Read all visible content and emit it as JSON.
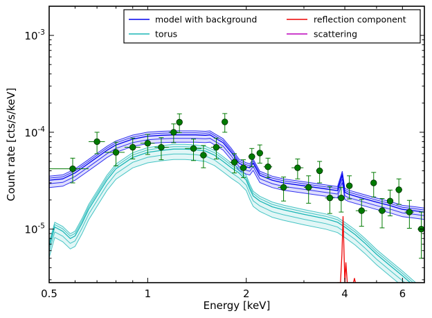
{
  "chart_data": {
    "type": "line",
    "xlabel": "Energy [keV]",
    "ylabel": "Count rate [cts/s/keV]",
    "xscale": "log",
    "yscale": "log",
    "xlim": [
      0.5,
      7.0
    ],
    "ylim": [
      2.8e-06,
      0.002
    ],
    "x_ticks": [
      {
        "value": 0.5,
        "label": "0.5"
      },
      {
        "value": 1,
        "label": "1"
      },
      {
        "value": 2,
        "label": "2"
      },
      {
        "value": 4,
        "label": "4"
      },
      {
        "value": 6,
        "label": "6"
      }
    ],
    "y_ticks": [
      {
        "value": 1e-05,
        "base": "10",
        "exp": "-5"
      },
      {
        "value": 0.0001,
        "base": "10",
        "exp": "-4"
      },
      {
        "value": 0.001,
        "base": "10",
        "exp": "-3"
      }
    ],
    "legend_position": "top-right",
    "grid": false,
    "legend": [
      {
        "label": "model with background",
        "color": "#0000ee"
      },
      {
        "label": "torus",
        "color": "#1ab6b6"
      },
      {
        "label": "reflection component",
        "color": "#ee0000"
      },
      {
        "label": "scattering",
        "color": "#bb00bb"
      }
    ],
    "series": [
      {
        "name": "model with background",
        "color": "#0000ee",
        "band": true,
        "x": [
          0.5,
          0.55,
          0.6,
          0.65,
          0.7,
          0.75,
          0.8,
          0.9,
          1.0,
          1.1,
          1.2,
          1.3,
          1.4,
          1.5,
          1.55,
          1.6,
          1.7,
          1.8,
          1.9,
          2.0,
          2.05,
          2.1,
          2.2,
          2.4,
          2.6,
          3.0,
          3.5,
          3.8,
          3.93,
          4.0,
          4.1,
          4.5,
          5.0,
          5.5,
          6.0,
          6.5,
          7.0
        ],
        "y": [
          3.2e-05,
          3.3e-05,
          3.8e-05,
          4.6e-05,
          5.5e-05,
          6.5e-05,
          7.4e-05,
          8.5e-05,
          9.1e-05,
          9.3e-05,
          9.4e-05,
          9.4e-05,
          9.4e-05,
          9.3e-05,
          9.4e-05,
          8.8e-05,
          7.8e-05,
          6.2e-05,
          4.8e-05,
          4.4e-05,
          4.3e-05,
          4.8e-05,
          3.6e-05,
          3.2e-05,
          3e-05,
          2.8e-05,
          2.6e-05,
          2.5e-05,
          3.6e-05,
          2.4e-05,
          2.3e-05,
          2.1e-05,
          1.9e-05,
          1.75e-05,
          1.6e-05,
          1.55e-05,
          1.5e-05
        ],
        "low_factor": 0.84,
        "high_factor": 1.1
      },
      {
        "name": "torus",
        "color": "#1ab6b6",
        "band": true,
        "x": [
          0.5,
          0.52,
          0.55,
          0.58,
          0.6,
          0.63,
          0.66,
          0.7,
          0.75,
          0.8,
          0.9,
          1.0,
          1.1,
          1.2,
          1.3,
          1.4,
          1.5,
          1.6,
          1.7,
          1.8,
          1.9,
          2.0,
          2.05,
          2.1,
          2.2,
          2.4,
          2.6,
          3.0,
          3.5,
          3.8,
          4.0,
          4.3,
          4.6,
          5.0,
          5.5,
          6.0,
          6.5,
          7.0
        ],
        "y": [
          6.5e-06,
          1.05e-05,
          9.5e-06,
          8e-06,
          8.5e-06,
          1.15e-05,
          1.6e-05,
          2.2e-05,
          3.2e-05,
          4.2e-05,
          5.5e-05,
          6.2e-05,
          6.5e-05,
          6.7e-05,
          6.7e-05,
          6.6e-05,
          6.4e-05,
          5.8e-05,
          5e-05,
          4.3e-05,
          3.8e-05,
          3.2e-05,
          2.6e-05,
          2.2e-05,
          1.95e-05,
          1.7e-05,
          1.58e-05,
          1.42e-05,
          1.28e-05,
          1.18e-05,
          1.05e-05,
          8.8e-06,
          7.2e-06,
          5.5e-06,
          4.2e-06,
          3.3e-06,
          2.6e-06,
          2.1e-06
        ],
        "low_factor": 0.78,
        "high_factor": 1.12
      },
      {
        "name": "reflection component",
        "color": "#ee0000",
        "band": false,
        "x": [
          3.8,
          3.88,
          3.92,
          3.95,
          3.97,
          4.0,
          4.03,
          4.07,
          4.12,
          4.2,
          4.25,
          4.28,
          4.31,
          4.34,
          4.45
        ],
        "y": [
          2.8e-06,
          2.8e-06,
          5.5e-06,
          1.35e-05,
          7.5e-06,
          2.8e-06,
          4.5e-06,
          2.8e-06,
          2.8e-06,
          2.8e-06,
          2.8e-06,
          3.1e-06,
          2.8e-06,
          2.8e-06,
          2.8e-06
        ]
      },
      {
        "name": "scattering",
        "color": "#bb00bb",
        "band": false,
        "x": [],
        "y": []
      }
    ],
    "data_points": {
      "color": "#007a00",
      "points": [
        {
          "x": 0.59,
          "y": 4.2e-05,
          "xerr": [
            0.09,
            0.07
          ],
          "yerr": [
            1.2e-05,
            1.2e-05
          ]
        },
        {
          "x": 0.7,
          "y": 8e-05,
          "xerr": [
            0.04,
            0.04
          ],
          "yerr": [
            2e-05,
            2e-05
          ]
        },
        {
          "x": 0.8,
          "y": 6.2e-05,
          "xerr": [
            0.06,
            0.05
          ],
          "yerr": [
            1.7e-05,
            1.7e-05
          ]
        },
        {
          "x": 0.9,
          "y": 7e-05,
          "xerr": [
            0.05,
            0.05
          ],
          "yerr": [
            1.7e-05,
            1.7e-05
          ]
        },
        {
          "x": 1.0,
          "y": 7.7e-05,
          "xerr": [
            0.05,
            0.05
          ],
          "yerr": [
            1.8e-05,
            1.8e-05
          ]
        },
        {
          "x": 1.1,
          "y": 7e-05,
          "xerr": [
            0.05,
            0.06
          ],
          "yerr": [
            1.8e-05,
            1.8e-05
          ]
        },
        {
          "x": 1.2,
          "y": 0.0001,
          "xerr": [
            0.04,
            0.04
          ],
          "yerr": [
            2.2e-05,
            2.2e-05
          ]
        },
        {
          "x": 1.25,
          "y": 0.000127,
          "xerr": [
            0.02,
            0.02
          ],
          "yerr": [
            2.8e-05,
            2.8e-05
          ]
        },
        {
          "x": 1.38,
          "y": 6.8e-05,
          "xerr": [
            0.08,
            0.08
          ],
          "yerr": [
            1.7e-05,
            1.7e-05
          ]
        },
        {
          "x": 1.48,
          "y": 5.8e-05,
          "xerr": [
            0.04,
            0.04
          ],
          "yerr": [
            1.5e-05,
            1.5e-05
          ]
        },
        {
          "x": 1.62,
          "y": 7e-05,
          "xerr": [
            0.06,
            0.07
          ],
          "yerr": [
            1.7e-05,
            1.7e-05
          ]
        },
        {
          "x": 1.72,
          "y": 0.000128,
          "xerr": [
            0.03,
            0.03
          ],
          "yerr": [
            2.8e-05,
            2.8e-05
          ]
        },
        {
          "x": 1.84,
          "y": 4.9e-05,
          "xerr": [
            0.06,
            0.06
          ],
          "yerr": [
            1.1e-05,
            1.1e-05
          ]
        },
        {
          "x": 1.96,
          "y": 4.3e-05,
          "xerr": [
            0.05,
            0.05
          ],
          "yerr": [
            9e-06,
            9e-06
          ]
        },
        {
          "x": 2.08,
          "y": 5.6e-05,
          "xerr": [
            0.05,
            0.05
          ],
          "yerr": [
            1.2e-05,
            1.2e-05
          ]
        },
        {
          "x": 2.2,
          "y": 6.1e-05,
          "xerr": [
            0.05,
            0.05
          ],
          "yerr": [
            1.3e-05,
            1.3e-05
          ]
        },
        {
          "x": 2.33,
          "y": 4.4e-05,
          "xerr": [
            0.07,
            0.07
          ],
          "yerr": [
            1e-05,
            1e-05
          ]
        },
        {
          "x": 2.6,
          "y": 2.7e-05,
          "xerr": [
            0.1,
            0.1
          ],
          "yerr": [
            7.5e-06,
            7.5e-06
          ]
        },
        {
          "x": 2.87,
          "y": 4.3e-05,
          "xerr": [
            0.12,
            0.12
          ],
          "yerr": [
            1e-05,
            1e-05
          ]
        },
        {
          "x": 3.1,
          "y": 2.7e-05,
          "xerr": [
            0.1,
            0.1
          ],
          "yerr": [
            8.5e-06,
            8.5e-06
          ]
        },
        {
          "x": 3.35,
          "y": 4e-05,
          "xerr": [
            0.08,
            0.08
          ],
          "yerr": [
            1e-05,
            1e-05
          ]
        },
        {
          "x": 3.6,
          "y": 2.1e-05,
          "xerr": [
            0.12,
            0.12
          ],
          "yerr": [
            6.5e-06,
            6.5e-06
          ]
        },
        {
          "x": 3.9,
          "y": 2.1e-05,
          "xerr": [
            0.1,
            0.1
          ],
          "yerr": [
            6e-06,
            6e-06
          ]
        },
        {
          "x": 4.13,
          "y": 2.8e-05,
          "xerr": [
            0.09,
            0.09
          ],
          "yerr": [
            7.5e-06,
            7.5e-06
          ]
        },
        {
          "x": 4.5,
          "y": 1.55e-05,
          "xerr": [
            0.18,
            0.18
          ],
          "yerr": [
            4.8e-06,
            4.8e-06
          ]
        },
        {
          "x": 4.9,
          "y": 3e-05,
          "xerr": [
            0.09,
            0.09
          ],
          "yerr": [
            8.5e-06,
            8.5e-06
          ]
        },
        {
          "x": 5.2,
          "y": 1.55e-05,
          "xerr": [
            0.14,
            0.14
          ],
          "yerr": [
            5.2e-06,
            5.2e-06
          ]
        },
        {
          "x": 5.5,
          "y": 1.95e-05,
          "xerr": [
            0.1,
            0.1
          ],
          "yerr": [
            5.8e-06,
            5.8e-06
          ]
        },
        {
          "x": 5.85,
          "y": 2.55e-05,
          "xerr": [
            0.14,
            0.14
          ],
          "yerr": [
            7.5e-06,
            7.5e-06
          ]
        },
        {
          "x": 6.3,
          "y": 1.5e-05,
          "xerr": [
            0.2,
            0.2
          ],
          "yerr": [
            4.8e-06,
            4.8e-06
          ]
        },
        {
          "x": 6.85,
          "y": 1e-05,
          "xerr": [
            0.18,
            0.18
          ],
          "yerr": [
            5e-06,
            5e-06
          ]
        }
      ]
    }
  }
}
